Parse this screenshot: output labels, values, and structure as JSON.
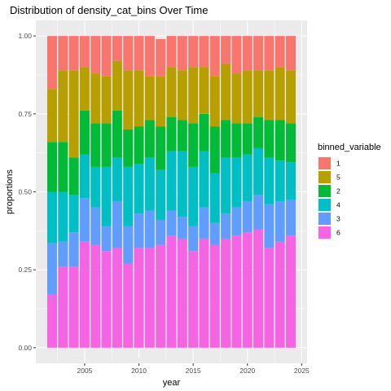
{
  "chart_data": {
    "type": "bar",
    "stacked": true,
    "title": "Distribution of density_cat_bins Over Time",
    "xlabel": "year",
    "ylabel": "proportions",
    "x": [
      2002,
      2003,
      2004,
      2005,
      2006,
      2007,
      2008,
      2009,
      2010,
      2011,
      2012,
      2013,
      2014,
      2015,
      2016,
      2017,
      2018,
      2019,
      2020,
      2021,
      2022,
      2023,
      2024
    ],
    "xlim": [
      2000.5,
      2025.5
    ],
    "ylim": [
      -0.05,
      1.05
    ],
    "x_ticks": [
      2005,
      2010,
      2015,
      2020,
      2025
    ],
    "y_ticks": [
      0.0,
      0.25,
      0.5,
      0.75,
      1.0
    ],
    "y_tick_labels": [
      "0.00",
      "0.25",
      "0.50",
      "0.75",
      "1.00"
    ],
    "grid": true,
    "legend_title": "binned_variable",
    "legend_position": "right",
    "legend_order": [
      "1",
      "5",
      "2",
      "4",
      "3",
      "6"
    ],
    "series": [
      {
        "name": "6",
        "color": "#F564E3",
        "values": [
          0.17,
          0.26,
          0.26,
          0.34,
          0.33,
          0.31,
          0.32,
          0.27,
          0.32,
          0.32,
          0.33,
          0.36,
          0.35,
          0.31,
          0.35,
          0.33,
          0.35,
          0.36,
          0.37,
          0.38,
          0.32,
          0.34,
          0.36
        ]
      },
      {
        "name": "3",
        "color": "#619CFF",
        "values": [
          0.165,
          0.08,
          0.11,
          0.14,
          0.12,
          0.08,
          0.15,
          0.12,
          0.11,
          0.12,
          0.08,
          0.08,
          0.07,
          0.08,
          0.1,
          0.07,
          0.08,
          0.09,
          0.1,
          0.11,
          0.14,
          0.13,
          0.115
        ]
      },
      {
        "name": "4",
        "color": "#00BFC4",
        "values": [
          0.165,
          0.16,
          0.12,
          0.14,
          0.13,
          0.19,
          0.14,
          0.19,
          0.16,
          0.17,
          0.16,
          0.19,
          0.21,
          0.19,
          0.18,
          0.16,
          0.18,
          0.16,
          0.15,
          0.15,
          0.15,
          0.13,
          0.12
        ]
      },
      {
        "name": "2",
        "color": "#00BA38",
        "values": [
          0.16,
          0.16,
          0.12,
          0.14,
          0.14,
          0.14,
          0.15,
          0.12,
          0.12,
          0.12,
          0.14,
          0.11,
          0.1,
          0.14,
          0.12,
          0.15,
          0.12,
          0.11,
          0.1,
          0.1,
          0.12,
          0.13,
          0.125
        ]
      },
      {
        "name": "5",
        "color": "#B79F00",
        "values": [
          0.17,
          0.23,
          0.28,
          0.14,
          0.16,
          0.15,
          0.16,
          0.19,
          0.18,
          0.14,
          0.16,
          0.16,
          0.16,
          0.18,
          0.15,
          0.16,
          0.18,
          0.16,
          0.17,
          0.15,
          0.16,
          0.17,
          0.17
        ]
      },
      {
        "name": "1",
        "color": "#F8766D",
        "values": [
          0.17,
          0.11,
          0.11,
          0.1,
          0.12,
          0.13,
          0.08,
          0.11,
          0.11,
          0.13,
          0.12,
          0.1,
          0.11,
          0.1,
          0.1,
          0.13,
          0.09,
          0.12,
          0.11,
          0.11,
          0.11,
          0.1,
          0.11
        ]
      }
    ]
  }
}
